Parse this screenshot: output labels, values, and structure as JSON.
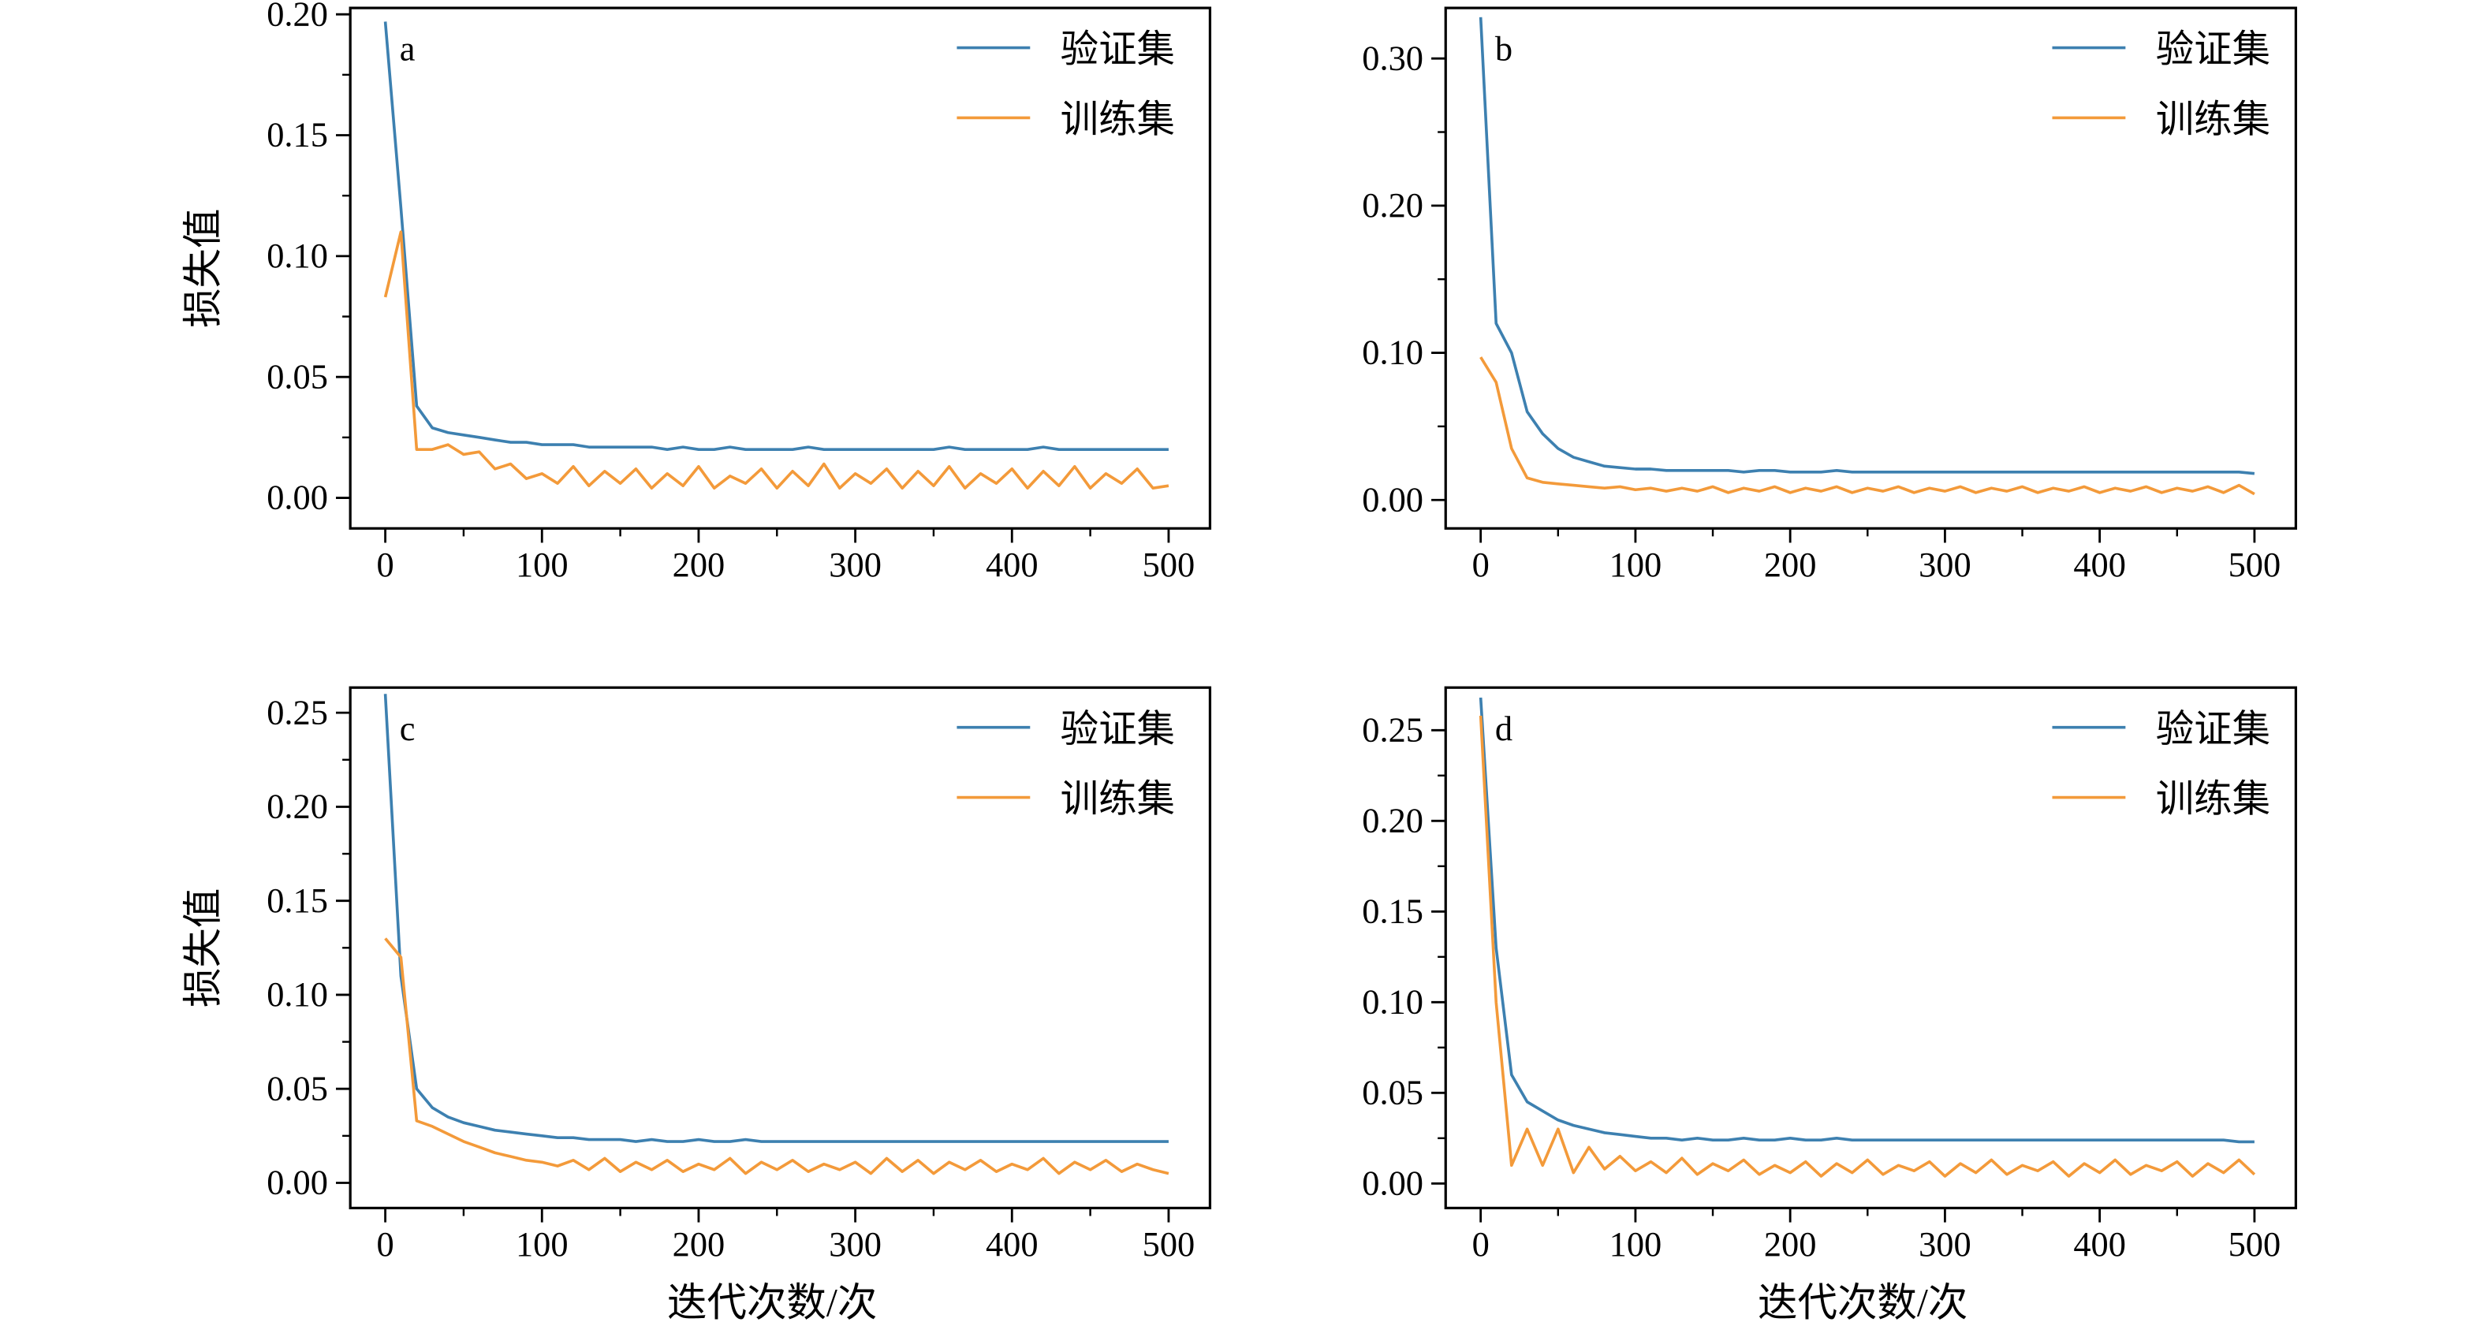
{
  "colors": {
    "validation": "#3d80b0",
    "training": "#f39a3a",
    "frame": "#000000"
  },
  "chart_data": [
    {
      "type": "line",
      "panel_label": "a",
      "xlabel": "",
      "ylabel": "损失值",
      "xlim": [
        0,
        500
      ],
      "ylim": [
        -0.01,
        0.2
      ],
      "xticks": [
        0,
        100,
        200,
        300,
        400,
        500
      ],
      "yticks": [
        0.0,
        0.05,
        0.1,
        0.15,
        0.2
      ],
      "ytick_labels": [
        "0.00",
        "0.05",
        "0.10",
        "0.15",
        "0.20"
      ],
      "legend_position": "top-right",
      "x": [
        0,
        10,
        20,
        30,
        40,
        50,
        60,
        70,
        80,
        90,
        100,
        110,
        120,
        130,
        140,
        150,
        160,
        170,
        180,
        190,
        200,
        210,
        220,
        230,
        240,
        250,
        260,
        270,
        280,
        290,
        300,
        310,
        320,
        330,
        340,
        350,
        360,
        370,
        380,
        390,
        400,
        410,
        420,
        430,
        440,
        450,
        460,
        470,
        480,
        490,
        500
      ],
      "series": [
        {
          "name": "验证集",
          "color_key": "validation",
          "values": [
            0.197,
            0.12,
            0.038,
            0.029,
            0.027,
            0.026,
            0.025,
            0.024,
            0.023,
            0.023,
            0.022,
            0.022,
            0.022,
            0.021,
            0.021,
            0.021,
            0.021,
            0.021,
            0.02,
            0.021,
            0.02,
            0.02,
            0.021,
            0.02,
            0.02,
            0.02,
            0.02,
            0.021,
            0.02,
            0.02,
            0.02,
            0.02,
            0.02,
            0.02,
            0.02,
            0.02,
            0.021,
            0.02,
            0.02,
            0.02,
            0.02,
            0.02,
            0.021,
            0.02,
            0.02,
            0.02,
            0.02,
            0.02,
            0.02,
            0.02,
            0.02
          ]
        },
        {
          "name": "训练集",
          "color_key": "training",
          "values": [
            0.083,
            0.11,
            0.02,
            0.02,
            0.022,
            0.018,
            0.019,
            0.012,
            0.014,
            0.008,
            0.01,
            0.006,
            0.013,
            0.005,
            0.011,
            0.006,
            0.012,
            0.004,
            0.01,
            0.005,
            0.013,
            0.004,
            0.009,
            0.006,
            0.012,
            0.004,
            0.011,
            0.005,
            0.014,
            0.004,
            0.01,
            0.006,
            0.012,
            0.004,
            0.011,
            0.005,
            0.013,
            0.004,
            0.01,
            0.006,
            0.012,
            0.004,
            0.011,
            0.005,
            0.013,
            0.004,
            0.01,
            0.006,
            0.012,
            0.004,
            0.005
          ]
        }
      ]
    },
    {
      "type": "line",
      "panel_label": "b",
      "xlabel": "",
      "ylabel": "",
      "xlim": [
        0,
        500
      ],
      "ylim": [
        -0.015,
        0.33
      ],
      "xticks": [
        0,
        100,
        200,
        300,
        400,
        500
      ],
      "yticks": [
        0.0,
        0.1,
        0.2,
        0.3
      ],
      "ytick_labels": [
        "0.00",
        "0.10",
        "0.20",
        "0.30"
      ],
      "legend_position": "top-right",
      "x": [
        0,
        10,
        20,
        30,
        40,
        50,
        60,
        70,
        80,
        90,
        100,
        110,
        120,
        130,
        140,
        150,
        160,
        170,
        180,
        190,
        200,
        210,
        220,
        230,
        240,
        250,
        260,
        270,
        280,
        290,
        300,
        310,
        320,
        330,
        340,
        350,
        360,
        370,
        380,
        390,
        400,
        410,
        420,
        430,
        440,
        450,
        460,
        470,
        480,
        490,
        500
      ],
      "series": [
        {
          "name": "验证集",
          "color_key": "validation",
          "values": [
            0.328,
            0.12,
            0.1,
            0.06,
            0.045,
            0.035,
            0.029,
            0.026,
            0.023,
            0.022,
            0.021,
            0.021,
            0.02,
            0.02,
            0.02,
            0.02,
            0.02,
            0.019,
            0.02,
            0.02,
            0.019,
            0.019,
            0.019,
            0.02,
            0.019,
            0.019,
            0.019,
            0.019,
            0.019,
            0.019,
            0.019,
            0.019,
            0.019,
            0.019,
            0.019,
            0.019,
            0.019,
            0.019,
            0.019,
            0.019,
            0.019,
            0.019,
            0.019,
            0.019,
            0.019,
            0.019,
            0.019,
            0.019,
            0.019,
            0.019,
            0.018
          ]
        },
        {
          "name": "训练集",
          "color_key": "training",
          "values": [
            0.097,
            0.08,
            0.035,
            0.015,
            0.012,
            0.011,
            0.01,
            0.009,
            0.008,
            0.009,
            0.007,
            0.008,
            0.006,
            0.008,
            0.006,
            0.009,
            0.005,
            0.008,
            0.006,
            0.009,
            0.005,
            0.008,
            0.006,
            0.009,
            0.005,
            0.008,
            0.006,
            0.009,
            0.005,
            0.008,
            0.006,
            0.009,
            0.005,
            0.008,
            0.006,
            0.009,
            0.005,
            0.008,
            0.006,
            0.009,
            0.005,
            0.008,
            0.006,
            0.009,
            0.005,
            0.008,
            0.006,
            0.009,
            0.005,
            0.01,
            0.004
          ]
        }
      ]
    },
    {
      "type": "line",
      "panel_label": "c",
      "xlabel": "迭代次数/次",
      "ylabel": "损失值",
      "xlim": [
        0,
        500
      ],
      "ylim": [
        -0.01,
        0.26
      ],
      "xticks": [
        0,
        100,
        200,
        300,
        400,
        500
      ],
      "yticks": [
        0.0,
        0.05,
        0.1,
        0.15,
        0.2,
        0.25
      ],
      "ytick_labels": [
        "0.00",
        "0.05",
        "0.10",
        "0.15",
        "0.20",
        "0.25"
      ],
      "legend_position": "top-right",
      "x": [
        0,
        10,
        20,
        30,
        40,
        50,
        60,
        70,
        80,
        90,
        100,
        110,
        120,
        130,
        140,
        150,
        160,
        170,
        180,
        190,
        200,
        210,
        220,
        230,
        240,
        250,
        260,
        270,
        280,
        290,
        300,
        310,
        320,
        330,
        340,
        350,
        360,
        370,
        380,
        390,
        400,
        410,
        420,
        430,
        440,
        450,
        460,
        470,
        480,
        490,
        500
      ],
      "series": [
        {
          "name": "验证集",
          "color_key": "validation",
          "values": [
            0.26,
            0.11,
            0.05,
            0.04,
            0.035,
            0.032,
            0.03,
            0.028,
            0.027,
            0.026,
            0.025,
            0.024,
            0.024,
            0.023,
            0.023,
            0.023,
            0.022,
            0.023,
            0.022,
            0.022,
            0.023,
            0.022,
            0.022,
            0.023,
            0.022,
            0.022,
            0.022,
            0.022,
            0.022,
            0.022,
            0.022,
            0.022,
            0.022,
            0.022,
            0.022,
            0.022,
            0.022,
            0.022,
            0.022,
            0.022,
            0.022,
            0.022,
            0.022,
            0.022,
            0.022,
            0.022,
            0.022,
            0.022,
            0.022,
            0.022,
            0.022
          ]
        },
        {
          "name": "训练集",
          "color_key": "training",
          "values": [
            0.13,
            0.12,
            0.033,
            0.03,
            0.026,
            0.022,
            0.019,
            0.016,
            0.014,
            0.012,
            0.011,
            0.009,
            0.012,
            0.007,
            0.013,
            0.006,
            0.011,
            0.007,
            0.012,
            0.006,
            0.01,
            0.007,
            0.013,
            0.005,
            0.011,
            0.007,
            0.012,
            0.006,
            0.01,
            0.007,
            0.011,
            0.005,
            0.013,
            0.006,
            0.012,
            0.005,
            0.011,
            0.007,
            0.012,
            0.006,
            0.01,
            0.007,
            0.013,
            0.005,
            0.011,
            0.007,
            0.012,
            0.006,
            0.01,
            0.007,
            0.005
          ]
        }
      ]
    },
    {
      "type": "line",
      "panel_label": "d",
      "xlabel": "迭代次数/次",
      "ylabel": "",
      "xlim": [
        0,
        500
      ],
      "ylim": [
        -0.01,
        0.27
      ],
      "xticks": [
        0,
        100,
        200,
        300,
        400,
        500
      ],
      "yticks": [
        0.0,
        0.05,
        0.1,
        0.15,
        0.2,
        0.25
      ],
      "ytick_labels": [
        "0.00",
        "0.05",
        "0.10",
        "0.15",
        "0.20",
        "0.25"
      ],
      "legend_position": "top-right",
      "x": [
        0,
        10,
        20,
        30,
        40,
        50,
        60,
        70,
        80,
        90,
        100,
        110,
        120,
        130,
        140,
        150,
        160,
        170,
        180,
        190,
        200,
        210,
        220,
        230,
        240,
        250,
        260,
        270,
        280,
        290,
        300,
        310,
        320,
        330,
        340,
        350,
        360,
        370,
        380,
        390,
        400,
        410,
        420,
        430,
        440,
        450,
        460,
        470,
        480,
        490,
        500
      ],
      "series": [
        {
          "name": "验证集",
          "color_key": "validation",
          "values": [
            0.268,
            0.13,
            0.06,
            0.045,
            0.04,
            0.035,
            0.032,
            0.03,
            0.028,
            0.027,
            0.026,
            0.025,
            0.025,
            0.024,
            0.025,
            0.024,
            0.024,
            0.025,
            0.024,
            0.024,
            0.025,
            0.024,
            0.024,
            0.025,
            0.024,
            0.024,
            0.024,
            0.024,
            0.024,
            0.024,
            0.024,
            0.024,
            0.024,
            0.024,
            0.024,
            0.024,
            0.024,
            0.024,
            0.024,
            0.024,
            0.024,
            0.024,
            0.024,
            0.024,
            0.024,
            0.024,
            0.024,
            0.024,
            0.024,
            0.023,
            0.023
          ]
        },
        {
          "name": "训练集",
          "color_key": "training",
          "values": [
            0.258,
            0.1,
            0.01,
            0.03,
            0.01,
            0.03,
            0.006,
            0.02,
            0.008,
            0.015,
            0.007,
            0.012,
            0.006,
            0.014,
            0.005,
            0.011,
            0.007,
            0.013,
            0.005,
            0.01,
            0.006,
            0.012,
            0.004,
            0.011,
            0.006,
            0.013,
            0.005,
            0.01,
            0.007,
            0.012,
            0.004,
            0.011,
            0.006,
            0.013,
            0.005,
            0.01,
            0.007,
            0.012,
            0.004,
            0.011,
            0.006,
            0.013,
            0.005,
            0.01,
            0.007,
            0.012,
            0.004,
            0.011,
            0.006,
            0.013,
            0.005
          ]
        }
      ]
    }
  ]
}
